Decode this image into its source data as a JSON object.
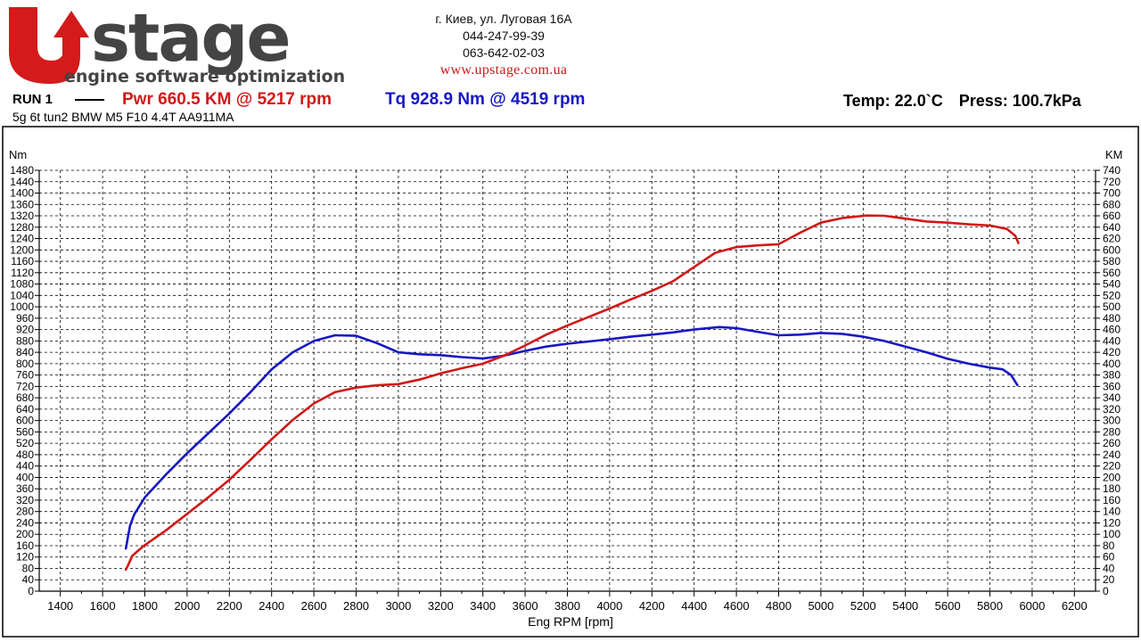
{
  "logo": {
    "brand": "UPstage",
    "tagline": "engine software optimization"
  },
  "contacts": {
    "address": "г. Киев, ул. Луговая 16А",
    "phone1": "044-247-99-39",
    "phone2": "063-642-02-03",
    "website": "www.upstage.com.ua"
  },
  "run": {
    "label": "RUN 1",
    "power_summary": "Pwr  660.5 KM @ 5217 rpm",
    "torque_summary": "Tq 928.9 Nm @ 4519 rpm",
    "temp": "Temp: 22.0`C",
    "pressure": "Press: 100.7kPa",
    "vehicle": "5g 6t tun2 BMW M5 F10 4.4T AA911MA"
  },
  "colors": {
    "power": "#d21818",
    "torque": "#1717c4"
  },
  "chart_data": {
    "type": "line",
    "xlabel": "Eng RPM [rpm]",
    "ylabel_left": "Nm",
    "ylabel_right": "KM",
    "xlim": [
      1300,
      6300
    ],
    "ylim_left": [
      0,
      1480
    ],
    "ylim_right": [
      0,
      740
    ],
    "x_ticks": [
      1400,
      1600,
      1800,
      2000,
      2200,
      2400,
      2600,
      2800,
      3000,
      3200,
      3400,
      3600,
      3800,
      4000,
      4200,
      4400,
      4600,
      4800,
      5000,
      5200,
      5400,
      5600,
      5800,
      6000,
      6200
    ],
    "grid": true,
    "series": [
      {
        "name": "Tq",
        "axis": "left",
        "color": "#1717c4",
        "points": [
          [
            1710,
            150
          ],
          [
            1715,
            170
          ],
          [
            1720,
            190
          ],
          [
            1730,
            230
          ],
          [
            1750,
            270
          ],
          [
            1800,
            330
          ],
          [
            1900,
            410
          ],
          [
            2000,
            485
          ],
          [
            2100,
            555
          ],
          [
            2200,
            625
          ],
          [
            2300,
            700
          ],
          [
            2400,
            780
          ],
          [
            2500,
            840
          ],
          [
            2600,
            880
          ],
          [
            2700,
            900
          ],
          [
            2800,
            898
          ],
          [
            2900,
            872
          ],
          [
            3000,
            840
          ],
          [
            3100,
            833
          ],
          [
            3200,
            830
          ],
          [
            3300,
            823
          ],
          [
            3400,
            818
          ],
          [
            3500,
            828
          ],
          [
            3600,
            845
          ],
          [
            3700,
            860
          ],
          [
            3800,
            870
          ],
          [
            3900,
            878
          ],
          [
            4000,
            886
          ],
          [
            4100,
            895
          ],
          [
            4200,
            902
          ],
          [
            4300,
            910
          ],
          [
            4400,
            920
          ],
          [
            4519,
            928.9
          ],
          [
            4600,
            925
          ],
          [
            4700,
            912
          ],
          [
            4800,
            900
          ],
          [
            4900,
            902
          ],
          [
            5000,
            908
          ],
          [
            5100,
            905
          ],
          [
            5200,
            895
          ],
          [
            5300,
            880
          ],
          [
            5400,
            860
          ],
          [
            5500,
            840
          ],
          [
            5600,
            817
          ],
          [
            5700,
            800
          ],
          [
            5800,
            786
          ],
          [
            5860,
            780
          ],
          [
            5900,
            760
          ],
          [
            5930,
            725
          ]
        ]
      },
      {
        "name": "Pwr",
        "axis": "right",
        "color": "#d21818",
        "points": [
          [
            1710,
            38
          ],
          [
            1720,
            45
          ],
          [
            1740,
            62
          ],
          [
            1770,
            72
          ],
          [
            1800,
            81
          ],
          [
            1900,
            107
          ],
          [
            2000,
            136
          ],
          [
            2100,
            165
          ],
          [
            2200,
            196
          ],
          [
            2300,
            231
          ],
          [
            2400,
            267
          ],
          [
            2500,
            301
          ],
          [
            2600,
            330
          ],
          [
            2700,
            350
          ],
          [
            2800,
            358
          ],
          [
            2900,
            362
          ],
          [
            3000,
            364
          ],
          [
            3100,
            372
          ],
          [
            3200,
            383
          ],
          [
            3300,
            392
          ],
          [
            3400,
            400
          ],
          [
            3500,
            414
          ],
          [
            3600,
            432
          ],
          [
            3700,
            451
          ],
          [
            3800,
            467
          ],
          [
            3900,
            482
          ],
          [
            4000,
            497
          ],
          [
            4100,
            513
          ],
          [
            4200,
            528
          ],
          [
            4300,
            545
          ],
          [
            4400,
            570
          ],
          [
            4500,
            595
          ],
          [
            4600,
            605
          ],
          [
            4700,
            608
          ],
          [
            4800,
            610
          ],
          [
            4900,
            630
          ],
          [
            5000,
            648
          ],
          [
            5100,
            656
          ],
          [
            5217,
            660.5
          ],
          [
            5300,
            660
          ],
          [
            5400,
            655
          ],
          [
            5500,
            650
          ],
          [
            5600,
            648
          ],
          [
            5700,
            645
          ],
          [
            5800,
            643
          ],
          [
            5880,
            637
          ],
          [
            5920,
            625
          ],
          [
            5935,
            612
          ]
        ]
      }
    ]
  }
}
